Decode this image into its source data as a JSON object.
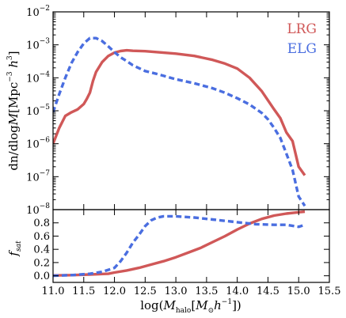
{
  "chart_data": [
    {
      "type": "line",
      "panel": "top",
      "ylabel": "dn/dlogM[Mpc^-3 h^3]",
      "yscale": "log",
      "ylim": [
        1e-08,
        0.01
      ],
      "xlim": [
        11.0,
        15.5
      ],
      "ytick_labels": [
        {
          "base": "10",
          "exp": "-8",
          "value": 1e-08
        },
        {
          "base": "10",
          "exp": "-7",
          "value": 1e-07
        },
        {
          "base": "10",
          "exp": "-6",
          "value": 1e-06
        },
        {
          "base": "10",
          "exp": "-5",
          "value": 1e-05
        },
        {
          "base": "10",
          "exp": "-4",
          "value": 0.0001
        },
        {
          "base": "10",
          "exp": "-3",
          "value": 0.001
        },
        {
          "base": "10",
          "exp": "-2",
          "value": 0.01
        }
      ],
      "legend": {
        "position": "top-right"
      },
      "series": [
        {
          "name": "LRG",
          "color": "#d05858",
          "style": "solid",
          "x": [
            11.0,
            11.1,
            11.2,
            11.3,
            11.4,
            11.5,
            11.55,
            11.6,
            11.65,
            11.7,
            11.8,
            11.9,
            12.0,
            12.1,
            12.2,
            12.3,
            12.5,
            12.7,
            13.0,
            13.3,
            13.6,
            13.8,
            14.0,
            14.2,
            14.4,
            14.6,
            14.7,
            14.8,
            14.9,
            15.0,
            15.1
          ],
          "y": [
            1e-06,
            3e-06,
            7e-06,
            9e-06,
            1.1e-05,
            1.6e-05,
            2.3e-05,
            3.5e-05,
            8e-05,
            0.00015,
            0.0003,
            0.00046,
            0.00058,
            0.00065,
            0.00068,
            0.00066,
            0.00064,
            0.0006,
            0.00054,
            0.00046,
            0.00035,
            0.00027,
            0.00019,
            0.0001,
            3.9e-05,
            1.1e-05,
            6e-06,
            2.2e-06,
            1.2e-06,
            2e-07,
            1.1e-07
          ]
        },
        {
          "name": "ELG",
          "color": "#4a6ee0",
          "style": "dashed",
          "x": [
            11.0,
            11.1,
            11.2,
            11.3,
            11.4,
            11.5,
            11.6,
            11.7,
            11.8,
            11.9,
            12.0,
            12.1,
            12.2,
            12.3,
            12.5,
            12.7,
            13.0,
            13.3,
            13.6,
            13.8,
            14.0,
            14.2,
            14.4,
            14.5,
            14.6,
            14.7,
            14.8,
            14.9,
            15.0,
            15.1
          ],
          "y": [
            9e-06,
            3.2e-05,
            0.0001,
            0.00028,
            0.0006,
            0.0011,
            0.0016,
            0.0016,
            0.0013,
            0.0009,
            0.0006,
            0.00042,
            0.00032,
            0.00024,
            0.00016,
            0.00013,
            9e-05,
            6.8e-05,
            4.8e-05,
            3.5e-05,
            2.4e-05,
            1.55e-05,
            8.5e-06,
            5.5e-06,
            3e-06,
            1.5e-06,
            5e-07,
            1.6e-07,
            2.5e-08,
            1.3e-08
          ]
        }
      ]
    },
    {
      "type": "line",
      "panel": "bottom",
      "ylabel": "f_sat",
      "xlabel": "log(M_halo[M_⊙h^-1])",
      "ylim": [
        -0.1,
        1.0
      ],
      "xlim": [
        11.0,
        15.5
      ],
      "yticks": [
        0.0,
        0.2,
        0.4,
        0.6,
        0.8
      ],
      "ytick_labels": [
        "0.0",
        "0.2",
        "0.4",
        "0.6",
        "0.8"
      ],
      "xticks": [
        11.0,
        11.5,
        12.0,
        12.5,
        13.0,
        13.5,
        14.0,
        14.5,
        15.0,
        15.5
      ],
      "xtick_labels": [
        "11.0",
        "11.5",
        "12.0",
        "12.5",
        "13.0",
        "13.5",
        "14.0",
        "14.5",
        "15.0",
        "15.5"
      ],
      "series": [
        {
          "name": "LRG",
          "color": "#d05858",
          "style": "solid",
          "x": [
            11.0,
            11.3,
            11.6,
            11.9,
            12.0,
            12.2,
            12.4,
            12.6,
            12.8,
            13.0,
            13.2,
            13.4,
            13.6,
            13.8,
            14.0,
            14.2,
            14.4,
            14.6,
            14.8,
            15.0,
            15.1
          ],
          "y": [
            0.005,
            0.01,
            0.02,
            0.03,
            0.05,
            0.08,
            0.12,
            0.17,
            0.22,
            0.28,
            0.35,
            0.42,
            0.51,
            0.6,
            0.7,
            0.79,
            0.86,
            0.91,
            0.94,
            0.96,
            0.97
          ]
        },
        {
          "name": "ELG",
          "color": "#4a6ee0",
          "style": "dashed",
          "x": [
            11.0,
            11.3,
            11.6,
            11.8,
            12.0,
            12.1,
            12.2,
            12.3,
            12.4,
            12.5,
            12.6,
            12.7,
            12.8,
            13.0,
            13.3,
            13.6,
            14.0,
            14.3,
            14.6,
            14.8,
            15.0,
            15.1
          ],
          "y": [
            0.0,
            0.01,
            0.03,
            0.06,
            0.12,
            0.22,
            0.35,
            0.5,
            0.62,
            0.75,
            0.84,
            0.88,
            0.9,
            0.9,
            0.88,
            0.85,
            0.81,
            0.78,
            0.77,
            0.77,
            0.74,
            0.77
          ]
        }
      ]
    }
  ]
}
